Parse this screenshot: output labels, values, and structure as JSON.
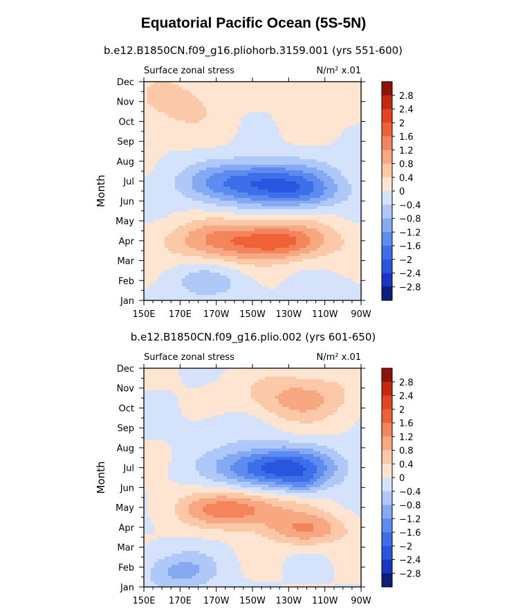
{
  "page": {
    "title": "Equatorial Pacific Ocean (5S-5N)"
  },
  "colors": {
    "scale": [
      "#0b1e7a",
      "#1a35c4",
      "#2a55de",
      "#3d6fea",
      "#5c8cf0",
      "#85aaf3",
      "#aec8f7",
      "#d4e3fb",
      "#fde5d2",
      "#fbc9a8",
      "#f8a881",
      "#f4845c",
      "#ef6238",
      "#e2451f",
      "#c42a0f",
      "#8f120b"
    ]
  },
  "chart_data": [
    {
      "type": "heatmap",
      "title": "b.e12.B1850CN.f09_g16.pliohorb.3159.001 (yrs 551-600)",
      "left_label": "Surface zonal stress",
      "right_label": "N/m² x.01",
      "xlabel": "",
      "ylabel": "Month",
      "x_ticks": [
        "150E",
        "170E",
        "170W",
        "150W",
        "130W",
        "110W",
        "90W"
      ],
      "x_range": [
        150,
        270
      ],
      "y_ticks": [
        "Jan",
        "Feb",
        "Mar",
        "Apr",
        "May",
        "Jun",
        "Jul",
        "Aug",
        "Sep",
        "Oct",
        "Nov",
        "Dec"
      ],
      "y_range": [
        1,
        12
      ],
      "colorbar_labels": [
        "2.8",
        "2.4",
        "2",
        "1.6",
        "1.2",
        "0.8",
        "0.4",
        "0",
        "-0.4",
        "-0.8",
        "-1.2",
        "-1.6",
        "-2",
        "-2.4",
        "-2.8"
      ],
      "colorbar_range": [
        -3.2,
        3.2
      ],
      "features": [
        {
          "lon": 215,
          "month": 6.9,
          "sx": 38,
          "sy": 1.05,
          "amp": -2.1
        },
        {
          "lon": 238,
          "month": 6.3,
          "sx": 22,
          "sy": 0.7,
          "amp": -0.6
        },
        {
          "lon": 168,
          "month": 10.9,
          "sx": 26,
          "sy": 1.5,
          "amp": 0.55
        },
        {
          "lon": 252,
          "month": 11.0,
          "sx": 24,
          "sy": 1.2,
          "amp": 0.4
        },
        {
          "lon": 210,
          "month": 4.0,
          "sx": 42,
          "sy": 1.0,
          "amp": 1.7
        },
        {
          "lon": 228,
          "month": 3.9,
          "sx": 18,
          "sy": 0.7,
          "amp": 0.4
        },
        {
          "lon": 185,
          "month": 1.9,
          "sx": 22,
          "sy": 0.9,
          "amp": -0.6
        },
        {
          "lon": 255,
          "month": 1.4,
          "sx": 14,
          "sy": 0.7,
          "amp": -0.35
        }
      ]
    },
    {
      "type": "heatmap",
      "title": "b.e12.B1850CN.f09_g16.plio.002 (yrs 601-650)",
      "left_label": "Surface zonal stress",
      "right_label": "N/m² x.01",
      "xlabel": "",
      "ylabel": "Month",
      "x_ticks": [
        "150E",
        "170E",
        "170W",
        "150W",
        "130W",
        "110W",
        "90W"
      ],
      "x_range": [
        150,
        270
      ],
      "y_ticks": [
        "Jan",
        "Feb",
        "Mar",
        "Apr",
        "May",
        "Jun",
        "Jul",
        "Aug",
        "Sep",
        "Oct",
        "Nov",
        "Dec"
      ],
      "y_range": [
        1,
        12
      ],
      "colorbar_labels": [
        "2.8",
        "2.4",
        "2",
        "1.6",
        "1.2",
        "0.8",
        "0.4",
        "0",
        "-0.4",
        "-0.8",
        "-1.2",
        "-1.6",
        "-2",
        "-2.4",
        "-2.8"
      ],
      "colorbar_range": [
        -3.2,
        3.2
      ],
      "features": [
        {
          "lon": 224,
          "month": 7.0,
          "sx": 32,
          "sy": 1.0,
          "amp": -2.3
        },
        {
          "lon": 238,
          "month": 6.2,
          "sx": 10,
          "sy": 0.5,
          "amp": -0.5
        },
        {
          "lon": 200,
          "month": 9.0,
          "sx": 22,
          "sy": 0.9,
          "amp": -0.3
        },
        {
          "lon": 235,
          "month": 10.5,
          "sx": 30,
          "sy": 1.2,
          "amp": 0.95
        },
        {
          "lon": 200,
          "month": 4.9,
          "sx": 30,
          "sy": 0.9,
          "amp": 1.5
        },
        {
          "lon": 240,
          "month": 3.9,
          "sx": 22,
          "sy": 0.8,
          "amp": 1.15
        },
        {
          "lon": 170,
          "month": 1.8,
          "sx": 20,
          "sy": 1.0,
          "amp": -0.95
        }
      ]
    }
  ]
}
